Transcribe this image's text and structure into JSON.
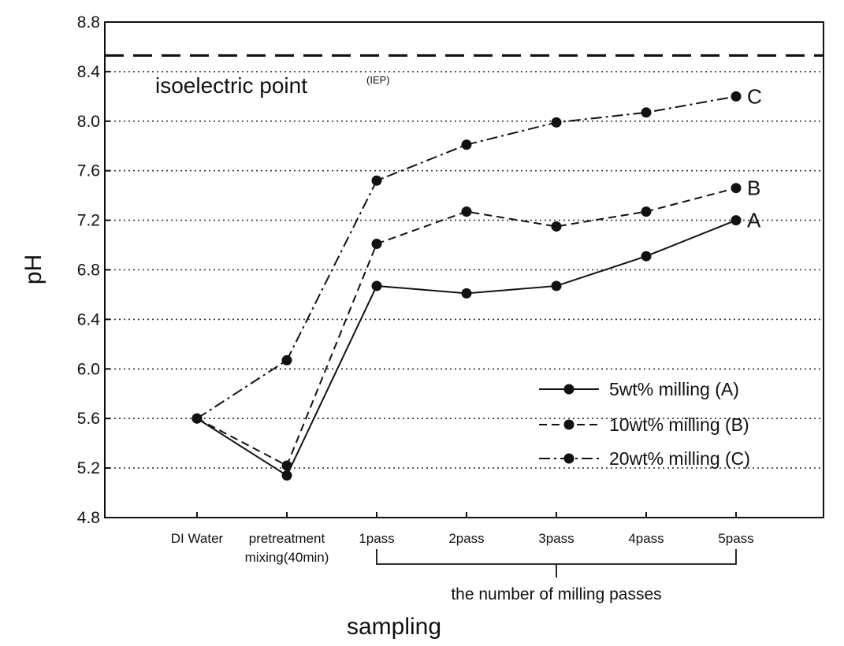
{
  "chart_data": {
    "type": "line",
    "xlabel": "sampling",
    "ylabel": "pH",
    "ylim": [
      4.8,
      8.8
    ],
    "yticks": [
      4.8,
      5.2,
      5.6,
      6.0,
      6.4,
      6.8,
      7.2,
      7.6,
      8.0,
      8.4,
      8.8
    ],
    "ytick_labels": [
      "4.8",
      "5.2",
      "5.6",
      "6.0",
      "6.4",
      "6.8",
      "7.2",
      "7.6",
      "8.0",
      "8.4",
      "8.8"
    ],
    "grid": "horizontal dotted",
    "legend_position": "bottom-right",
    "categories": [
      {
        "line1": "DI Water",
        "line2": ""
      },
      {
        "line1": "pretreatment",
        "line2": "mixing(40min)"
      },
      {
        "line1": "1pass",
        "line2": ""
      },
      {
        "line1": "2pass",
        "line2": ""
      },
      {
        "line1": "3pass",
        "line2": ""
      },
      {
        "line1": "4pass",
        "line2": ""
      },
      {
        "line1": "5pass",
        "line2": ""
      }
    ],
    "bracket_label": "the number of milling passes",
    "bracket_range": [
      "1pass",
      "5pass"
    ],
    "reference_line": {
      "value": 8.53,
      "label": "isoelectric point",
      "label_small": "(IEP)",
      "style": "dashed"
    },
    "series": [
      {
        "name": "5wt% milling (A)",
        "end_label": "A",
        "style": "solid",
        "color": "#111111",
        "values": [
          5.6,
          5.14,
          6.67,
          6.61,
          6.67,
          6.91,
          7.2
        ]
      },
      {
        "name": "10wt% milling (B)",
        "end_label": "B",
        "style": "dashed",
        "color": "#111111",
        "values": [
          5.6,
          5.22,
          7.01,
          7.27,
          7.15,
          7.27,
          7.46
        ]
      },
      {
        "name": "20wt% milling (C)",
        "end_label": "C",
        "style": "dashdot",
        "color": "#111111",
        "values": [
          5.6,
          6.07,
          7.52,
          7.81,
          7.99,
          8.07,
          8.2
        ]
      }
    ]
  }
}
